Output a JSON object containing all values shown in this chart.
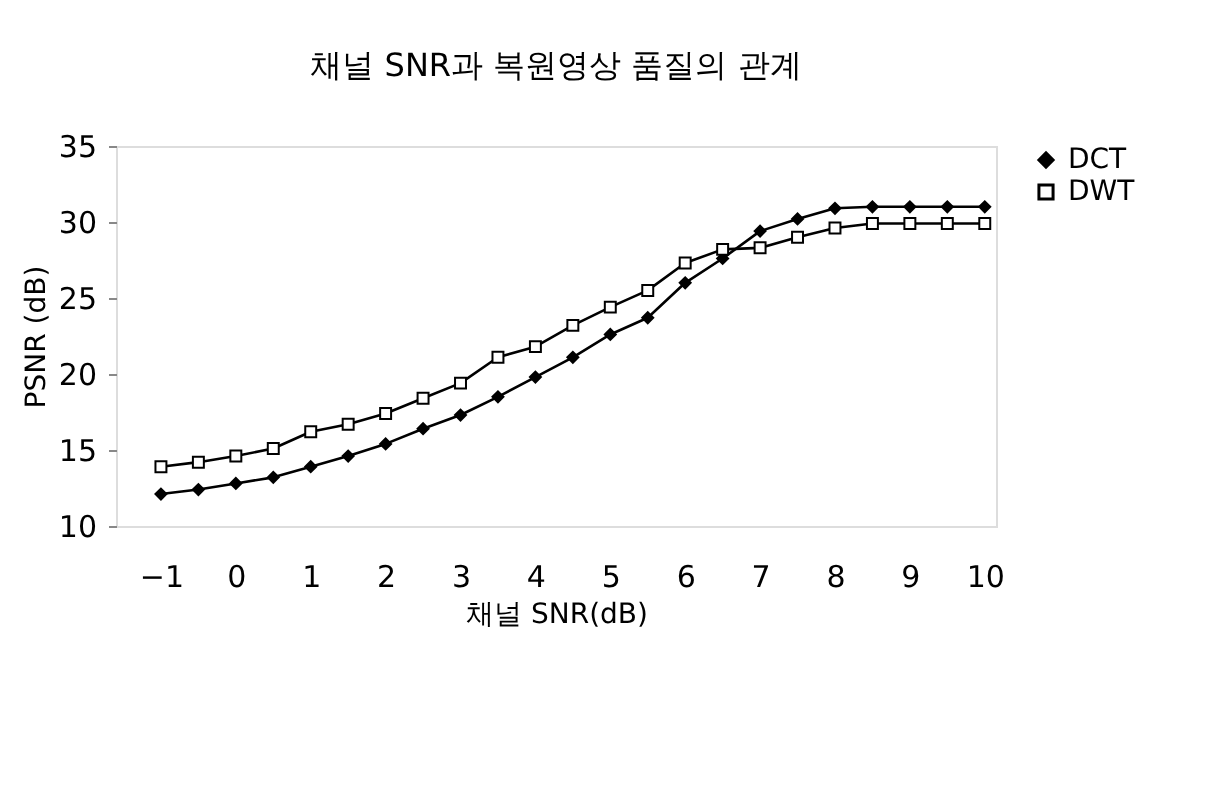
{
  "chart_data": {
    "type": "line",
    "title": "채널 SNR과 복원영상 품질의 관계",
    "xlabel": "채널 SNR(dB)",
    "ylabel": "PSNR (dB)",
    "x": [
      -1,
      -0.5,
      0,
      0.5,
      1,
      1.5,
      2,
      2.5,
      3,
      3.5,
      4,
      4.5,
      5,
      5.5,
      6,
      6.5,
      7,
      7.5,
      8,
      8.5,
      9,
      9.5,
      10
    ],
    "series": [
      {
        "name": "DCT",
        "color": "#000000",
        "marker": "diamond",
        "values": [
          12.1,
          12.4,
          12.8,
          13.2,
          13.9,
          14.6,
          15.4,
          16.4,
          17.3,
          18.5,
          19.8,
          21.1,
          22.6,
          23.7,
          26.0,
          27.6,
          29.4,
          30.2,
          30.9,
          31.0,
          31.0,
          31.0,
          31.0
        ]
      },
      {
        "name": "DWT",
        "color": "#000000",
        "marker": "square",
        "values": [
          13.9,
          14.2,
          14.6,
          15.1,
          16.2,
          16.7,
          17.4,
          18.4,
          19.4,
          21.1,
          21.8,
          23.2,
          24.4,
          25.5,
          27.3,
          28.2,
          28.3,
          29.0,
          29.6,
          29.9,
          29.9,
          29.9,
          29.9
        ]
      }
    ],
    "xlim": [
      -1.6,
      10.15
    ],
    "xticks": [
      -1,
      0,
      1,
      2,
      3,
      4,
      5,
      6,
      7,
      8,
      9,
      10
    ],
    "ylim": [
      10,
      35
    ],
    "yticks": [
      10,
      15,
      20,
      25,
      30,
      35
    ],
    "grid": false,
    "legend": "right",
    "line_style": "solid"
  }
}
